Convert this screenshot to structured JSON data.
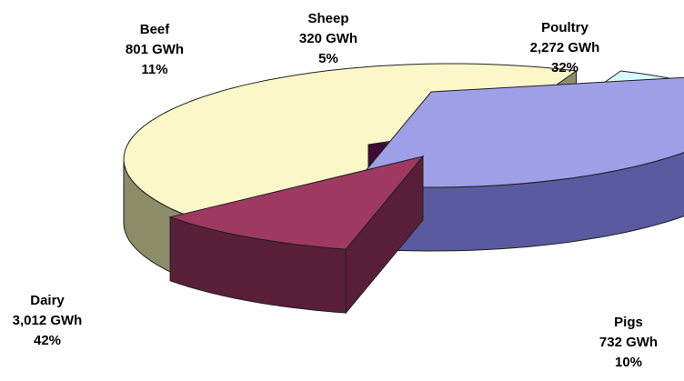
{
  "chart_data": {
    "type": "pie",
    "title": "",
    "unit": "GWh",
    "exploded_3d": true,
    "slices": [
      {
        "name": "Poultry",
        "value_label": "2,272 GWh",
        "value": 2272,
        "percent_label": "32%",
        "percent": 32,
        "top_color": "#9f9fe8",
        "side_color": "#5a5aa0"
      },
      {
        "name": "Pigs",
        "value_label": "732 GWh",
        "value": 732,
        "percent_label": "10%",
        "percent": 10,
        "top_color": "#9e3a62",
        "side_color": "#5a1f38"
      },
      {
        "name": "Dairy",
        "value_label": "3,012 GWh",
        "value": 3012,
        "percent_label": "42%",
        "percent": 42,
        "top_color": "#fbf7c8",
        "side_color": "#8c8c68"
      },
      {
        "name": "Beef",
        "value_label": "801 GWh",
        "value": 801,
        "percent_label": "11%",
        "percent": 11,
        "top_color": "#d6fbfb",
        "side_color": "#6f9090"
      },
      {
        "name": "Sheep",
        "value_label": "320 GWh",
        "value": 320,
        "percent_label": "5%",
        "percent": 5,
        "top_color": "#7a1a6e",
        "side_color": "#3e0a36"
      }
    ]
  }
}
